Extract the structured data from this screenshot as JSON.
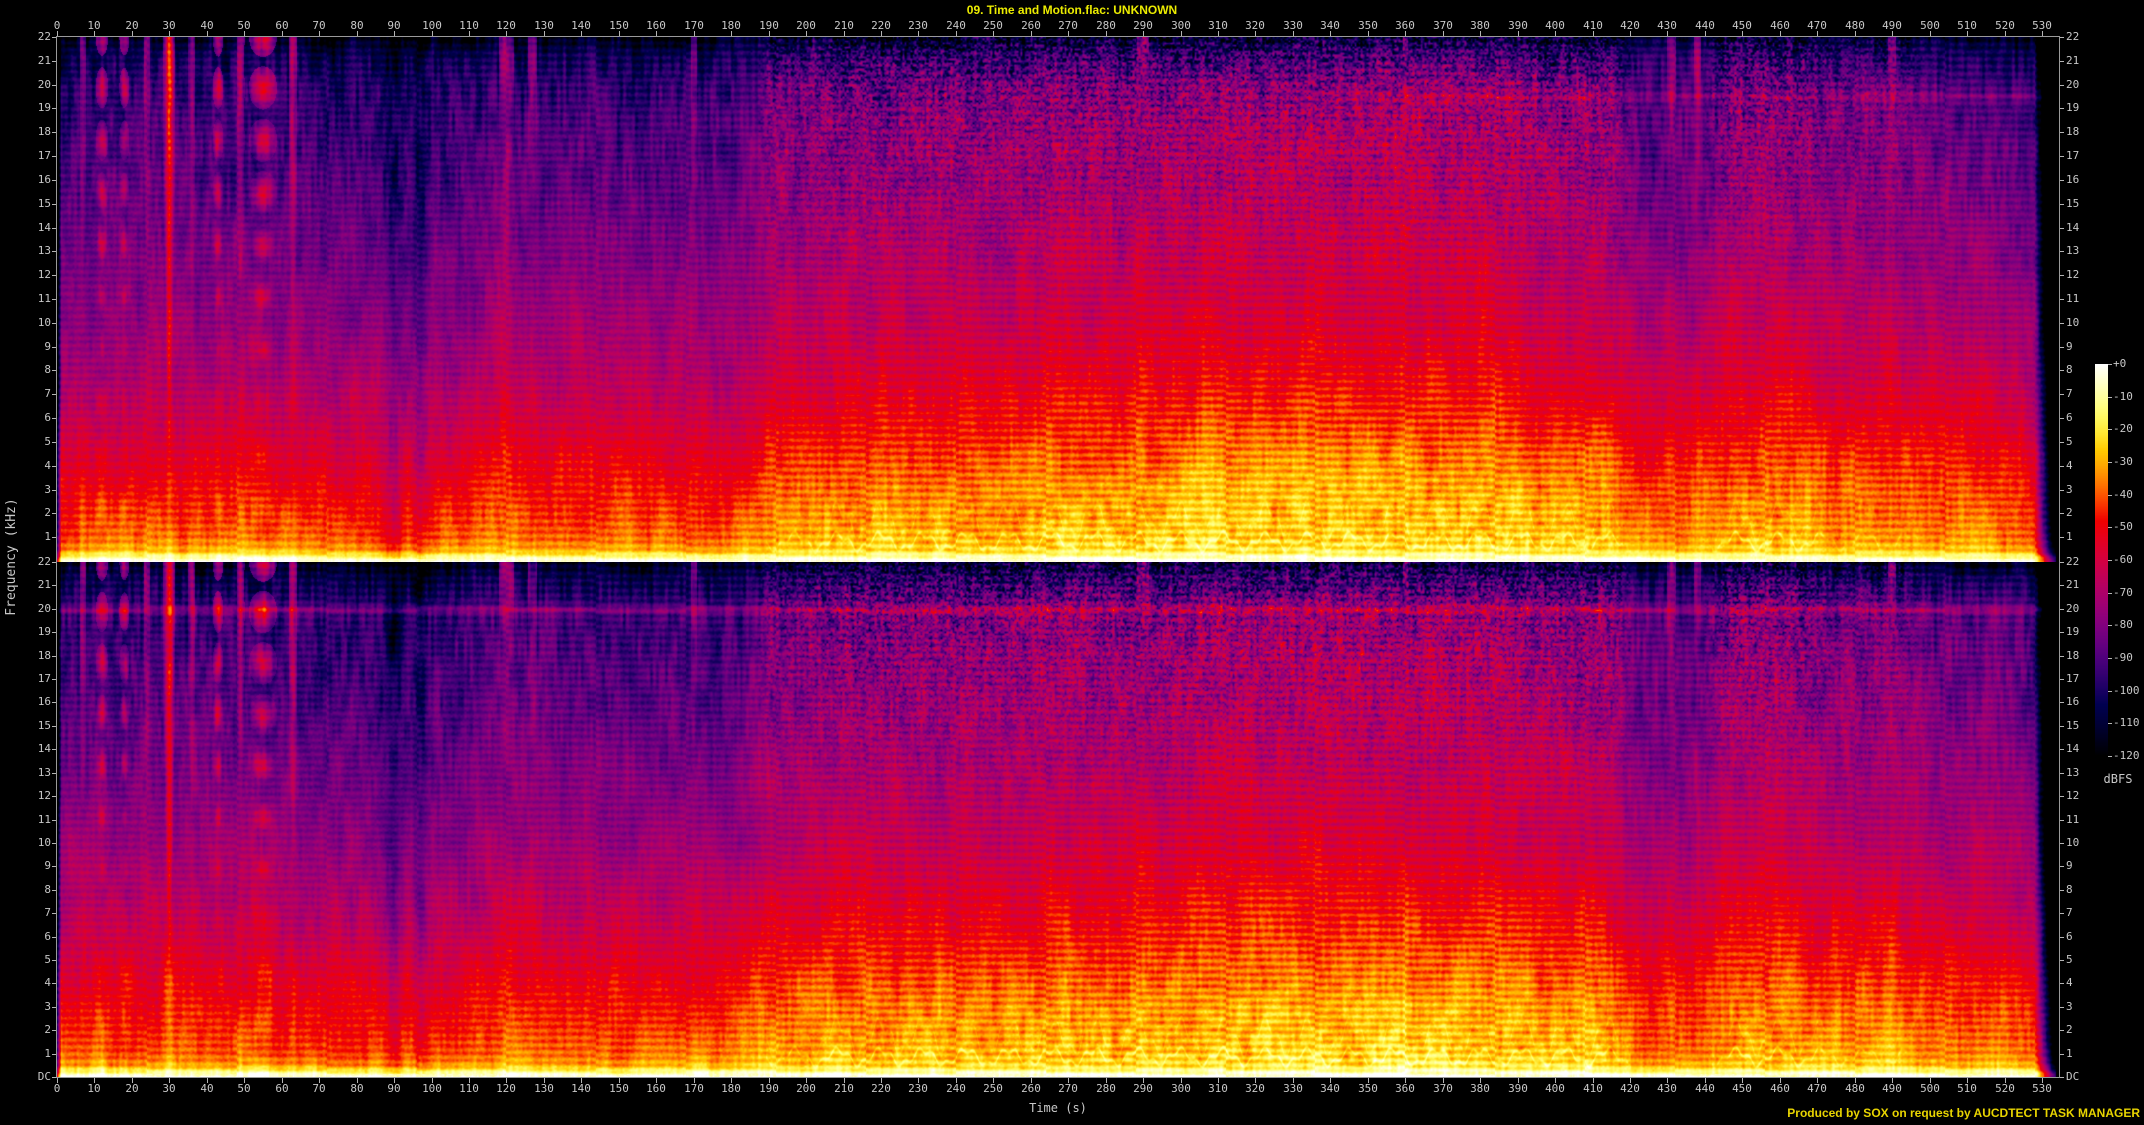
{
  "title": "09. Time and Motion.flac: UNKNOWN",
  "footer": {
    "credit": "Produced by SOX on request by AUCDTECT TASK MANAGER"
  },
  "axes": {
    "x_label": "Time (s)",
    "y_label": "Frequency (kHz)",
    "dc_label": "DC",
    "time_ticks": [
      0,
      10,
      20,
      30,
      40,
      50,
      60,
      70,
      80,
      90,
      100,
      110,
      120,
      130,
      140,
      150,
      160,
      170,
      180,
      190,
      200,
      210,
      220,
      230,
      240,
      250,
      260,
      270,
      280,
      290,
      300,
      310,
      320,
      330,
      340,
      350,
      360,
      370,
      380,
      390,
      400,
      410,
      420,
      430,
      440,
      450,
      460,
      470,
      480,
      490,
      500,
      510,
      520,
      530
    ],
    "freq_ticks": [
      22,
      21,
      20,
      19,
      18,
      17,
      16,
      15,
      14,
      13,
      12,
      11,
      10,
      9,
      8,
      7,
      6,
      5,
      4,
      3,
      2,
      1
    ]
  },
  "legend": {
    "unit": "dBFS",
    "ticks": [
      "+0",
      "-10",
      "-20",
      "-30",
      "-40",
      "-50",
      "-60",
      "-70",
      "-80",
      "-90",
      "-100",
      "-110",
      "-120"
    ]
  },
  "colors": {
    "background": "#000000",
    "title_text": "#ecec00",
    "credit_text": "#e8d400",
    "axis_text": "#c8c8c8",
    "axis_line": "#9a9a9a",
    "palette_top": "#ffffff",
    "palette_mid": "#d20040",
    "palette_bottom": "#000000"
  },
  "chart_data": {
    "type": "heatmap",
    "subtype": "stereo_spectrogram",
    "channels": [
      "left",
      "right"
    ],
    "time_range_s": [
      0,
      535
    ],
    "freq_range_khz": [
      0,
      22
    ],
    "level_range_dbfs": [
      -120,
      0
    ],
    "audio_end_s": 533.8,
    "spectral_profile_quiet_db": [
      [
        0,
        -8
      ],
      [
        0.15,
        -14
      ],
      [
        0.5,
        -38
      ],
      [
        1,
        -48
      ],
      [
        2,
        -55
      ],
      [
        3,
        -60
      ],
      [
        4,
        -64
      ],
      [
        6,
        -73
      ],
      [
        8,
        -80
      ],
      [
        10,
        -86
      ],
      [
        13,
        -94
      ],
      [
        16,
        -101
      ],
      [
        18,
        -105
      ],
      [
        20,
        -108
      ],
      [
        21,
        -111
      ],
      [
        22,
        -114
      ]
    ],
    "spectral_profile_loud_db": [
      [
        0,
        -5
      ],
      [
        0.15,
        -8
      ],
      [
        0.5,
        -20
      ],
      [
        1,
        -24
      ],
      [
        2,
        -27
      ],
      [
        3,
        -29
      ],
      [
        4,
        -34
      ],
      [
        6,
        -43
      ],
      [
        8,
        -51
      ],
      [
        10,
        -57
      ],
      [
        13,
        -63
      ],
      [
        16,
        -68
      ],
      [
        18,
        -70
      ],
      [
        20,
        -78
      ],
      [
        21,
        -90
      ],
      [
        22,
        -102
      ]
    ],
    "section_levels": [
      [
        0,
        6,
        0.33
      ],
      [
        6,
        60,
        0.36
      ],
      [
        60,
        112,
        0.3
      ],
      [
        112,
        150,
        0.45
      ],
      [
        150,
        185,
        0.4
      ],
      [
        185,
        205,
        0.7
      ],
      [
        205,
        258,
        0.78
      ],
      [
        258,
        300,
        0.88
      ],
      [
        300,
        390,
        1.0
      ],
      [
        390,
        418,
        0.85
      ],
      [
        418,
        442,
        0.52
      ],
      [
        442,
        468,
        0.8
      ],
      [
        468,
        497,
        0.68
      ],
      [
        497,
        521,
        0.58
      ],
      [
        521,
        529,
        0.4
      ],
      [
        529,
        535,
        0.15
      ]
    ],
    "transient_events": [
      [
        7,
        0.9,
        10,
        0
      ],
      [
        12,
        1.3,
        20,
        1
      ],
      [
        18,
        1.1,
        18,
        1
      ],
      [
        24,
        0.8,
        9,
        0
      ],
      [
        30,
        1.1,
        32,
        0
      ],
      [
        36,
        0.9,
        11,
        0
      ],
      [
        43,
        1.1,
        22,
        1
      ],
      [
        49,
        0.9,
        13,
        0
      ],
      [
        55,
        2.8,
        24,
        1
      ],
      [
        63,
        1.0,
        15,
        0
      ],
      [
        90,
        2.5,
        -12,
        0
      ],
      [
        97,
        2.0,
        -10,
        0
      ],
      [
        120,
        2.0,
        10,
        0
      ],
      [
        127,
        1.5,
        8,
        0
      ],
      [
        170,
        1.2,
        6,
        0
      ],
      [
        290,
        1.6,
        10,
        0
      ],
      [
        360,
        1.0,
        6,
        0
      ],
      [
        431,
        1.2,
        10,
        0
      ],
      [
        438,
        1.0,
        11,
        0
      ],
      [
        490,
        1.3,
        8,
        0
      ]
    ],
    "tone_lines": [
      {
        "channel": "right",
        "freq_khz": 19.95,
        "boost_db": 13,
        "t0": 0,
        "t1": 533
      },
      {
        "channel": "left",
        "freq_khz": 19.5,
        "boost_db": 8,
        "t0": 345,
        "t1": 533
      }
    ]
  }
}
